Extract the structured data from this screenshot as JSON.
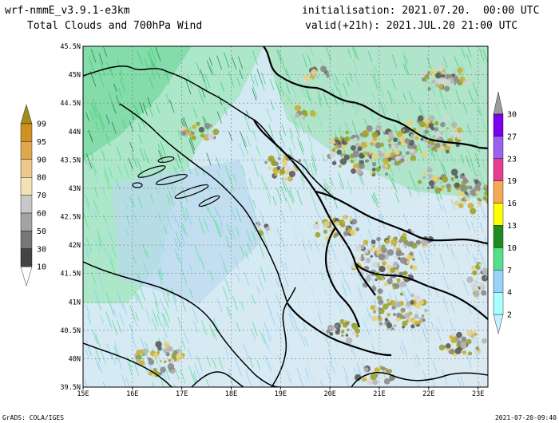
{
  "header": {
    "model": "wrf-nmmE_v3.9.1-e3km",
    "product": "Total Clouds and 700hPa Wind",
    "initialisation": "initialisation: 2021.07.20.  00:00 UTC",
    "valid": "valid(+21h): 2021.JUL.20 21:00 UTC"
  },
  "map": {
    "lat_labels": [
      "45.5N",
      "45N",
      "44.5N",
      "44N",
      "43.5N",
      "43N",
      "42.5N",
      "42N",
      "41.5N",
      "41N",
      "40.5N",
      "40N",
      "39.5N"
    ],
    "lon_labels": [
      "15E",
      "16E",
      "17E",
      "18E",
      "19E",
      "20E",
      "21E",
      "22E",
      "23E"
    ],
    "lat_range": [
      39.5,
      45.5
    ],
    "lon_range": [
      15,
      23.2
    ]
  },
  "cloud_legend": {
    "levels": [
      "10",
      "30",
      "50",
      "60",
      "70",
      "80",
      "90",
      "95",
      "99"
    ],
    "colors": [
      "#444444",
      "#777777",
      "#a3a3a3",
      "#c8c8c8",
      "#f2e3b4",
      "#ecc98a",
      "#e0a84e",
      "#cf9124",
      "#a38d17"
    ]
  },
  "wind_legend": {
    "levels": [
      "2",
      "4",
      "7",
      "10",
      "13",
      "16",
      "19",
      "23",
      "27",
      "30"
    ],
    "colors": [
      "#c6efff",
      "#a7ffff",
      "#96d2fa",
      "#52e089",
      "#1f8c1f",
      "#ffff00",
      "#f4a953",
      "#e63d93",
      "#9b62ee",
      "#7b00ec"
    ]
  },
  "footer": {
    "left": "GrADS: COLA/IGES",
    "right": "2021-07-20-09:40"
  }
}
